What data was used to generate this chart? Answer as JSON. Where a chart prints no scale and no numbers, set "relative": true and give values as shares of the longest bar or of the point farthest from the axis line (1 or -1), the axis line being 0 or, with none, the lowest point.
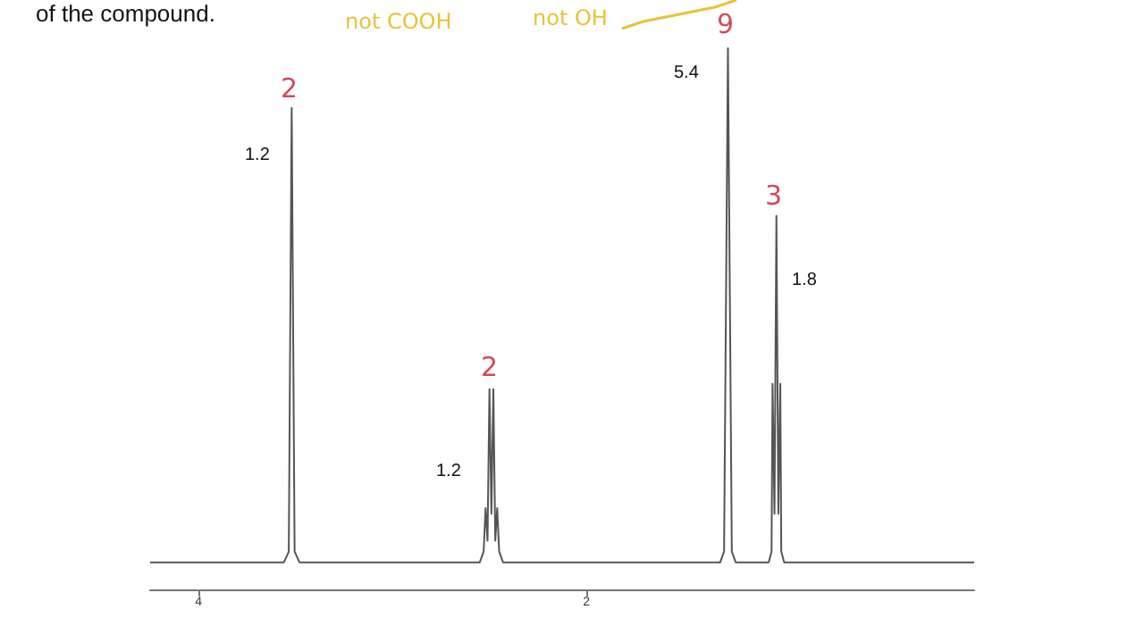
{
  "chart_data": {
    "type": "line",
    "relative": true,
    "color": "#555555",
    "marker": "none",
    "x": [
      4.25,
      3.56,
      3.535,
      3.52,
      3.505,
      3.48,
      2.55,
      2.53,
      2.52,
      2.51,
      2.5,
      2.49,
      2.48,
      2.47,
      2.46,
      2.45,
      2.43,
      1.31,
      1.29,
      1.27,
      1.25,
      1.23,
      1.06,
      1.045,
      1.04,
      1.03,
      1.02,
      1.01,
      1.0,
      0.995,
      0.98,
      0.0
    ],
    "values": [
      0.05,
      0.05,
      0.07,
      0.89,
      0.07,
      0.05,
      0.05,
      0.07,
      0.15,
      0.09,
      0.37,
      0.14,
      0.37,
      0.09,
      0.15,
      0.07,
      0.05,
      0.05,
      0.07,
      1,
      0.07,
      0.05,
      0.05,
      0.07,
      0.38,
      0.14,
      0.69,
      0.14,
      0.38,
      0.07,
      0.05,
      0.05
    ],
    "xlim": [
      4.25,
      0.0
    ],
    "xticks": [
      4,
      2
    ],
    "tick_labels": "x",
    "annotations": [
      "of the compound.",
      "not COOH",
      "not OH",
      "1.2",
      "1.2",
      "5.4",
      "1.8",
      "2",
      "2",
      "9",
      "3"
    ]
  }
}
